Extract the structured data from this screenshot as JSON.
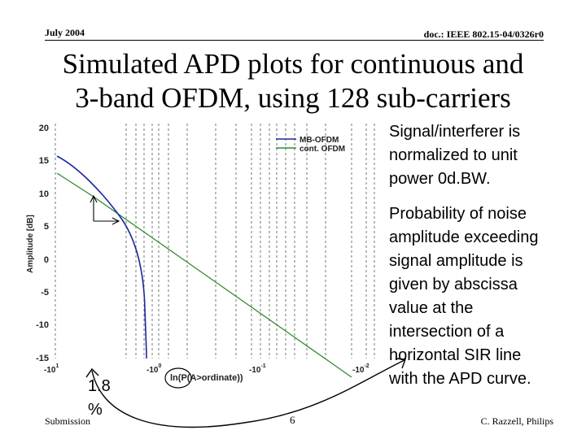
{
  "header": {
    "date": "July 2004",
    "doc_id": "doc.: IEEE 802.15-04/0326r0"
  },
  "title": {
    "line1": "Simulated APD plots for continuous and",
    "line2": "3-band OFDM, using 128 sub-carriers"
  },
  "side_text": {
    "para1": [
      "Signal/interferer is",
      "normalized to unit",
      "power 0d.BW."
    ],
    "para2": [
      "Probability of noise",
      "amplitude exceeding",
      "signal amplitude is",
      "given by abscissa",
      "value at the",
      "intersection of a",
      "horizontal SIR line",
      "with the APD curve."
    ]
  },
  "callout": {
    "line1": "1.8",
    "line2": "%"
  },
  "footer": {
    "left": "Submission",
    "page": "6",
    "right": "C. Razzell, Philips"
  },
  "colors": {
    "mb_ofdm": "#1a2a9a",
    "cont_ofdm": "#2e8b2e"
  },
  "chart_data": {
    "type": "line",
    "xlabel": "ln(P(A>ordinate))",
    "ylabel": "Amplitude [dB]",
    "x_scale": "log-probability",
    "y_range": [
      -15,
      20
    ],
    "y_ticks": [
      "20",
      "15",
      "10",
      "5",
      "0",
      "-5",
      "-10",
      "-15"
    ],
    "x_ticks": [
      {
        "base": "-10",
        "exp": "1"
      },
      {
        "base": "-10",
        "exp": "0"
      },
      {
        "base": "-10",
        "exp": "-1"
      },
      {
        "base": "-10",
        "exp": "-2"
      }
    ],
    "series": [
      {
        "name": "MB-OFDM",
        "color": "#1a2a9a"
      },
      {
        "name": "cont. OFDM",
        "color": "#2e8b2e"
      }
    ],
    "legend_position": "top-right",
    "grid": "vertical dashed"
  }
}
